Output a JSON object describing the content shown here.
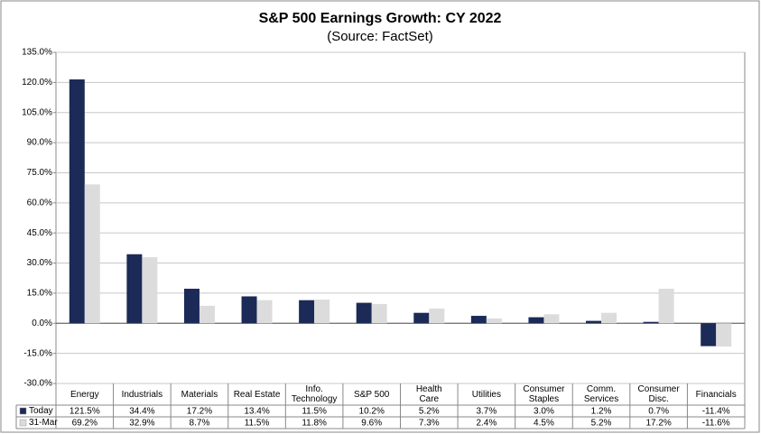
{
  "chart_data": {
    "type": "bar",
    "title": "S&P 500 Earnings Growth: CY 2022",
    "subtitle": "(Source: FactSet)",
    "categories": [
      "Energy",
      "Industrials",
      "Materials",
      "Real Estate",
      "Info.\nTechnology",
      "S&P 500",
      "Health\nCare",
      "Utilities",
      "Consumer\nStaples",
      "Comm.\nServices",
      "Consumer\nDisc.",
      "Financials"
    ],
    "series": [
      {
        "name": "Today",
        "color": "#1b2a57",
        "values": [
          121.5,
          34.4,
          17.2,
          13.4,
          11.5,
          10.2,
          5.2,
          3.7,
          3.0,
          1.2,
          0.7,
          -11.4
        ],
        "value_labels": [
          "121.5%",
          "34.4%",
          "17.2%",
          "13.4%",
          "11.5%",
          "10.2%",
          "5.2%",
          "3.7%",
          "3.0%",
          "1.2%",
          "0.7%",
          "-11.4%"
        ]
      },
      {
        "name": "31-Mar",
        "color": "#dcdcdc",
        "values": [
          69.2,
          32.9,
          8.7,
          11.5,
          11.8,
          9.6,
          7.3,
          2.4,
          4.5,
          5.2,
          17.2,
          -11.6
        ],
        "value_labels": [
          "69.2%",
          "32.9%",
          "8.7%",
          "11.5%",
          "11.8%",
          "9.6%",
          "7.3%",
          "2.4%",
          "4.5%",
          "5.2%",
          "17.2%",
          "-11.6%"
        ]
      }
    ],
    "ylim": [
      -30,
      135
    ],
    "yticks": [
      {
        "value": -30,
        "label": "-30.0%"
      },
      {
        "value": -15,
        "label": "-15.0%"
      },
      {
        "value": 0,
        "label": "0.0%"
      },
      {
        "value": 15,
        "label": "15.0%"
      },
      {
        "value": 30,
        "label": "30.0%"
      },
      {
        "value": 45,
        "label": "45.0%"
      },
      {
        "value": 60,
        "label": "60.0%"
      },
      {
        "value": 75,
        "label": "75.0%"
      },
      {
        "value": 90,
        "label": "90.0%"
      },
      {
        "value": 105,
        "label": "105.0%"
      },
      {
        "value": 120,
        "label": "120.0%"
      },
      {
        "value": 135,
        "label": "135.0%"
      }
    ],
    "grid": true
  }
}
